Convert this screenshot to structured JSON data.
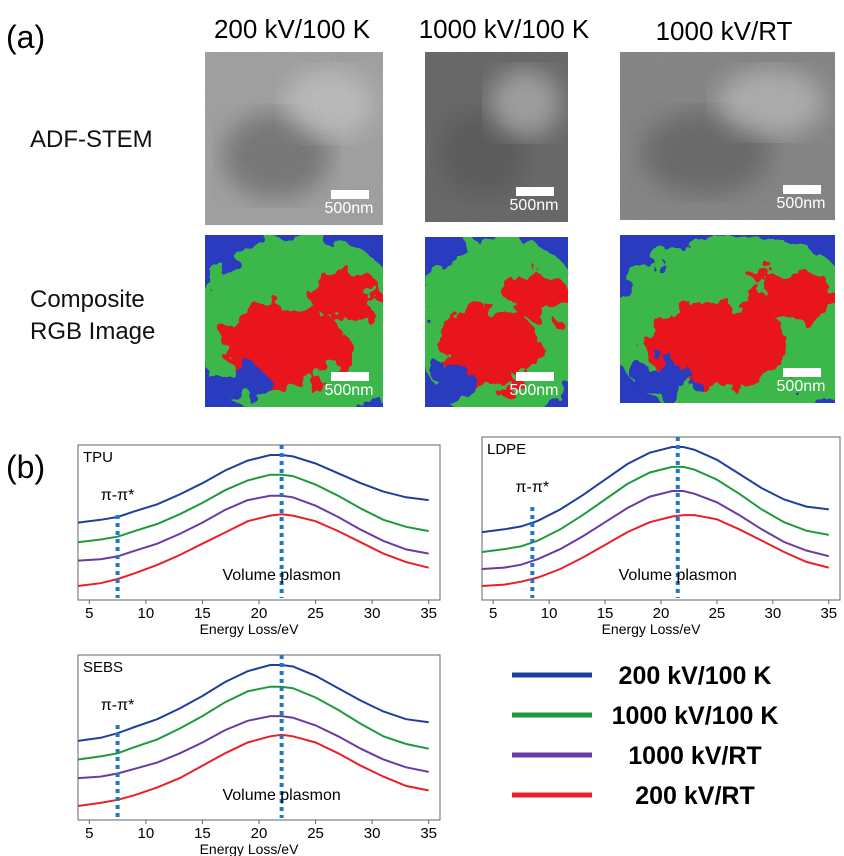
{
  "panel_a": {
    "label": "(a)",
    "columns": [
      "200 kV/100 K",
      "1000 kV/100 K",
      "1000 kV/RT"
    ],
    "rows": [
      "ADF-STEM",
      "Composite RGB Image"
    ],
    "scale_bar": "500nm"
  },
  "panel_b": {
    "label": "(b)"
  },
  "chart_data": [
    {
      "type": "line",
      "title": "TPU",
      "x_label": "Energy Loss/eV",
      "x": [
        4,
        6,
        7.5,
        9,
        11,
        13,
        15,
        17,
        19,
        21,
        22,
        23,
        25,
        27,
        29,
        31,
        33,
        35
      ],
      "xlim": [
        4,
        36
      ],
      "xticks": [
        5,
        10,
        15,
        20,
        25,
        30,
        35
      ],
      "markers": [
        {
          "x": 7.5,
          "label": "π-π*"
        },
        {
          "x": 22,
          "label": "Volume plasmon"
        }
      ],
      "series": [
        {
          "name": "200 kV/100 K",
          "color": "#1f3f9e",
          "values": [
            0.7,
            0.72,
            0.74,
            0.78,
            0.83,
            0.9,
            0.98,
            1.07,
            1.14,
            1.18,
            1.18,
            1.17,
            1.12,
            1.05,
            0.98,
            0.92,
            0.88,
            0.86
          ]
        },
        {
          "name": "1000 kV/100 K",
          "color": "#1e9a3c",
          "values": [
            0.56,
            0.58,
            0.6,
            0.64,
            0.69,
            0.76,
            0.84,
            0.93,
            1.0,
            1.04,
            1.04,
            1.03,
            0.97,
            0.89,
            0.8,
            0.72,
            0.67,
            0.64
          ]
        },
        {
          "name": "1000 kV/RT",
          "color": "#6a3aa8",
          "values": [
            0.43,
            0.44,
            0.46,
            0.5,
            0.55,
            0.62,
            0.7,
            0.79,
            0.86,
            0.89,
            0.89,
            0.88,
            0.82,
            0.74,
            0.65,
            0.57,
            0.51,
            0.48
          ]
        },
        {
          "name": "200 kV/RT",
          "color": "#e8202a",
          "values": [
            0.25,
            0.27,
            0.3,
            0.34,
            0.4,
            0.47,
            0.55,
            0.63,
            0.71,
            0.75,
            0.76,
            0.75,
            0.71,
            0.64,
            0.56,
            0.48,
            0.42,
            0.38
          ]
        }
      ]
    },
    {
      "type": "line",
      "title": "LDPE",
      "x_label": "Energy Loss/eV",
      "x": [
        4,
        6,
        7.5,
        9,
        11,
        13,
        15,
        17,
        19,
        21,
        22,
        23,
        25,
        27,
        29,
        31,
        33,
        35
      ],
      "xlim": [
        4,
        36
      ],
      "xticks": [
        5,
        10,
        15,
        20,
        25,
        30,
        35
      ],
      "markers": [
        {
          "x": 8.5,
          "label": "π-π*"
        },
        {
          "x": 21.5,
          "label": "Volume plasmon"
        }
      ],
      "series": [
        {
          "name": "200 kV/100 K",
          "color": "#1f3f9e",
          "values": [
            0.62,
            0.64,
            0.66,
            0.7,
            0.78,
            0.88,
            0.99,
            1.1,
            1.18,
            1.22,
            1.22,
            1.2,
            1.13,
            1.03,
            0.93,
            0.85,
            0.8,
            0.78
          ]
        },
        {
          "name": "1000 kV/100 K",
          "color": "#1e9a3c",
          "values": [
            0.48,
            0.5,
            0.52,
            0.56,
            0.64,
            0.74,
            0.85,
            0.96,
            1.04,
            1.08,
            1.08,
            1.06,
            0.99,
            0.89,
            0.78,
            0.69,
            0.63,
            0.6
          ]
        },
        {
          "name": "1000 kV/RT",
          "color": "#6a3aa8",
          "values": [
            0.36,
            0.37,
            0.39,
            0.43,
            0.5,
            0.59,
            0.69,
            0.79,
            0.87,
            0.91,
            0.91,
            0.89,
            0.83,
            0.74,
            0.64,
            0.55,
            0.49,
            0.45
          ]
        },
        {
          "name": "200 kV/RT",
          "color": "#e8202a",
          "values": [
            0.24,
            0.25,
            0.27,
            0.3,
            0.36,
            0.44,
            0.53,
            0.62,
            0.69,
            0.73,
            0.74,
            0.74,
            0.71,
            0.64,
            0.56,
            0.48,
            0.41,
            0.37
          ]
        }
      ]
    },
    {
      "type": "line",
      "title": "SEBS",
      "x_label": "Energy Loss/eV",
      "x": [
        4,
        6,
        7.5,
        9,
        11,
        13,
        15,
        17,
        19,
        21,
        22,
        23,
        25,
        27,
        29,
        31,
        33,
        35
      ],
      "xlim": [
        4,
        36
      ],
      "xticks": [
        5,
        10,
        15,
        20,
        25,
        30,
        35
      ],
      "markers": [
        {
          "x": 7.5,
          "label": "π-π*"
        },
        {
          "x": 22,
          "label": "Volume plasmon"
        }
      ],
      "series": [
        {
          "name": "200 kV/100 K",
          "color": "#1f3f9e",
          "values": [
            0.72,
            0.74,
            0.77,
            0.81,
            0.86,
            0.93,
            1.01,
            1.1,
            1.17,
            1.21,
            1.21,
            1.2,
            1.14,
            1.06,
            0.98,
            0.91,
            0.86,
            0.84
          ]
        },
        {
          "name": "1000 kV/100 K",
          "color": "#1e9a3c",
          "values": [
            0.6,
            0.62,
            0.64,
            0.68,
            0.73,
            0.8,
            0.88,
            0.97,
            1.04,
            1.07,
            1.07,
            1.06,
            1.0,
            0.92,
            0.83,
            0.75,
            0.7,
            0.67
          ]
        },
        {
          "name": "1000 kV/RT",
          "color": "#6a3aa8",
          "values": [
            0.48,
            0.49,
            0.51,
            0.54,
            0.58,
            0.64,
            0.71,
            0.79,
            0.85,
            0.88,
            0.88,
            0.87,
            0.82,
            0.75,
            0.67,
            0.6,
            0.55,
            0.52
          ]
        },
        {
          "name": "200 kV/RT",
          "color": "#e8202a",
          "values": [
            0.3,
            0.32,
            0.34,
            0.37,
            0.42,
            0.48,
            0.56,
            0.64,
            0.71,
            0.75,
            0.76,
            0.75,
            0.71,
            0.64,
            0.56,
            0.49,
            0.43,
            0.4
          ]
        }
      ]
    }
  ]
}
